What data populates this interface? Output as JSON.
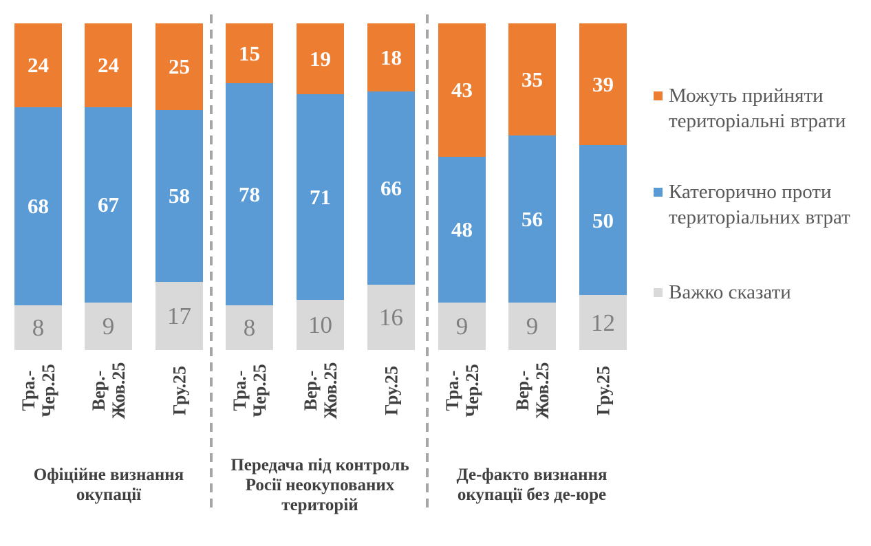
{
  "chart_data": {
    "type": "bar",
    "variant": "stacked-percent-column",
    "title": "",
    "xlabel": "",
    "ylabel": "",
    "ylim": [
      0,
      100
    ],
    "grid": false,
    "legend_position": "right",
    "stack_order_top_to_bottom": [
      "accept",
      "against",
      "hard"
    ],
    "legend": [
      {
        "key": "accept",
        "label": "Можуть прийняти\nтериторіальні втрати",
        "color": "#ED7D31"
      },
      {
        "key": "against",
        "label": "Категорично проти\nтериторіальних втрат",
        "color": "#5B9BD5"
      },
      {
        "key": "hard",
        "label": "Важко сказати",
        "color": "#D9D9D9"
      }
    ],
    "palette": {
      "accept": "#ED7D31",
      "against": "#5B9BD5",
      "hard": "#D9D9D9",
      "divider": "#A6A6A6",
      "axis_text": "#404040",
      "legend_text": "#595959",
      "value_text_on_color": "#FFFFFF",
      "value_text_on_gray": "#7F7F7F"
    },
    "groups": [
      {
        "label": "Офіційне визнання\nокупації",
        "bars": [
          {
            "period": "Тра.-\nЧер.25",
            "values": {
              "accept": 24,
              "against": 68,
              "hard": 8
            }
          },
          {
            "period": "Вер.-\nЖов.25",
            "values": {
              "accept": 24,
              "against": 67,
              "hard": 9
            }
          },
          {
            "period": "Гру.25",
            "values": {
              "accept": 25,
              "against": 58,
              "hard": 17
            }
          }
        ]
      },
      {
        "label": "Передача під контроль\nРосії неокупованих\nтериторій",
        "bars": [
          {
            "period": "Тра.-\nЧер.25",
            "values": {
              "accept": 15,
              "against": 78,
              "hard": 8
            }
          },
          {
            "period": "Вер.-\nЖов.25",
            "values": {
              "accept": 19,
              "against": 71,
              "hard": 10
            }
          },
          {
            "period": "Гру.25",
            "values": {
              "accept": 18,
              "against": 66,
              "hard": 16
            }
          }
        ]
      },
      {
        "label": "Де-факто визнання\nокупації без де-юре",
        "bars": [
          {
            "period": "Тра.-\nЧер.25",
            "values": {
              "accept": 43,
              "against": 48,
              "hard": 9
            }
          },
          {
            "period": "Вер.-\nЖов.25",
            "values": {
              "accept": 35,
              "against": 56,
              "hard": 9
            }
          },
          {
            "period": "Гру.25",
            "values": {
              "accept": 39,
              "against": 50,
              "hard": 12
            }
          }
        ]
      }
    ]
  }
}
